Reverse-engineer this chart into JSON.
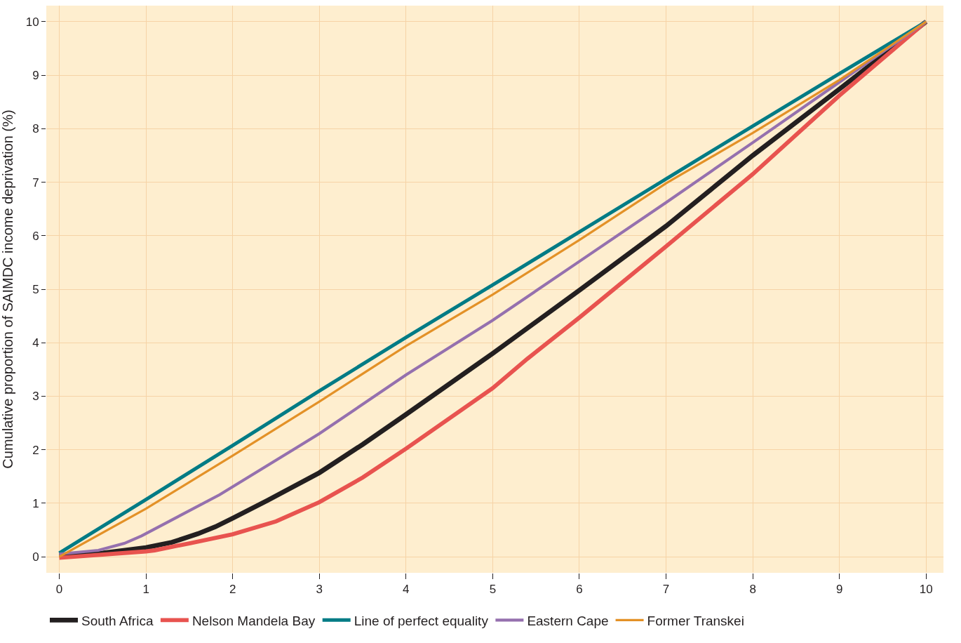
{
  "chart_data": {
    "type": "line",
    "ylabel": "Cumulative proportion of SAIMDC income deprivation (%)",
    "xlim": [
      -0.15,
      10.2
    ],
    "ylim": [
      -0.3,
      10.3
    ],
    "xticks": [
      0,
      1,
      2,
      3,
      4,
      5,
      6,
      7,
      8,
      9,
      10
    ],
    "yticks": [
      0,
      1,
      2,
      3,
      4,
      5,
      6,
      7,
      8,
      9,
      10
    ],
    "grid": true,
    "legend": "bottom",
    "marker": "none",
    "line_style": "solid",
    "series": [
      {
        "name": "South Africa",
        "color": "#231f20",
        "x": [
          0,
          0.5,
          1,
          1.3,
          1.6,
          1.8,
          2,
          2.4,
          3,
          3.5,
          4,
          5,
          6,
          7,
          8,
          9,
          10
        ],
        "values": [
          0.03,
          0.07,
          0.17,
          0.27,
          0.43,
          0.56,
          0.72,
          1.05,
          1.57,
          2.1,
          2.66,
          3.8,
          4.98,
          6.18,
          7.5,
          8.74,
          10
        ]
      },
      {
        "name": "Nelson Mandela Bay",
        "color": "#e8534f",
        "x": [
          0,
          1,
          1.1,
          1.5,
          2,
          2.5,
          3,
          3.5,
          4,
          5,
          5.4,
          6,
          7,
          8,
          9,
          10
        ],
        "values": [
          -0.02,
          0.1,
          0.12,
          0.25,
          0.42,
          0.66,
          1.02,
          1.48,
          2.02,
          3.15,
          3.7,
          4.47,
          5.8,
          7.15,
          8.62,
          10
        ]
      },
      {
        "name": "Line of perfect equality",
        "color": "#007b85",
        "x": [
          0,
          1,
          2,
          3,
          4,
          5,
          6,
          7,
          8,
          9,
          10
        ],
        "values": [
          0.07,
          1.07,
          2.08,
          3.1,
          4.1,
          5.08,
          6.07,
          7.06,
          8.05,
          9.03,
          10
        ]
      },
      {
        "name": "Eastern Cape",
        "color": "#9570ae",
        "x": [
          0,
          0.45,
          0.75,
          0.95,
          1.85,
          2.75,
          3,
          4,
          5,
          6,
          7,
          8,
          9,
          10
        ],
        "values": [
          0.05,
          0.12,
          0.25,
          0.39,
          1.16,
          2.05,
          2.3,
          3.4,
          4.42,
          5.52,
          6.62,
          7.74,
          8.87,
          10
        ]
      },
      {
        "name": "Former Transkei",
        "color": "#e39127",
        "x": [
          0,
          1,
          2,
          3,
          4,
          5,
          6,
          7,
          8,
          9,
          10
        ],
        "values": [
          0,
          0.9,
          1.89,
          2.9,
          3.94,
          4.9,
          5.92,
          6.98,
          7.92,
          8.91,
          10
        ]
      }
    ]
  }
}
